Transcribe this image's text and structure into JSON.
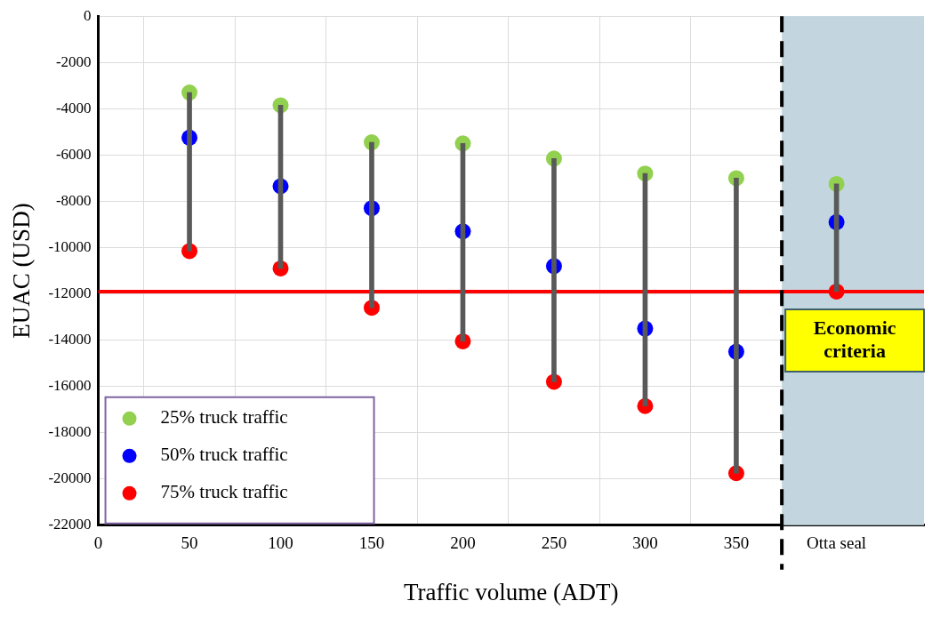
{
  "chart_data": {
    "type": "scatter",
    "xlabel": "Traffic volume (ADT)",
    "ylabel": "EUAC (USD)",
    "x": [
      50,
      100,
      150,
      200,
      250,
      300,
      350,
      405
    ],
    "series": [
      {
        "type": "bar",
        "color": "#595959",
        "base": [
          -10150,
          -10900,
          -12600,
          -14050,
          -15800,
          -16850,
          -19750,
          -11900
        ],
        "values": [
          6850,
          7050,
          7150,
          8550,
          9650,
          10050,
          12750,
          4650
        ]
      },
      {
        "name": "25% truck traffic",
        "color": "#92d050",
        "values": [
          -3300,
          -3850,
          -5450,
          -5500,
          -6150,
          -6800,
          -7000,
          -7250
        ]
      },
      {
        "name": "50% truck traffic",
        "color": "#0000ff",
        "values": [
          -5250,
          -7350,
          -8300,
          -9300,
          -10800,
          -13500,
          -14500,
          -8900
        ]
      },
      {
        "name": "75% truck traffic",
        "color": "#ff0000",
        "values": [
          -10150,
          -10900,
          -12600,
          -14050,
          -15800,
          -16850,
          -19750,
          -11900
        ]
      }
    ],
    "xlim": [
      0,
      453
    ],
    "xticks": [
      0,
      50,
      100,
      150,
      200,
      250,
      300,
      350,
      {
        "value": 405,
        "label": "Otta seal"
      }
    ],
    "ylim": [
      -22000,
      0
    ],
    "yticks": [
      -22000,
      -20000,
      -18000,
      -16000,
      -14000,
      -12000,
      -10000,
      -8000,
      -6000,
      -4000,
      -2000,
      0
    ],
    "ref_lines": [
      {
        "axis": "y",
        "value": -11900,
        "label": "Economic criteria",
        "color": "#ff0000"
      },
      {
        "axis": "x",
        "value": 375,
        "label": null,
        "color": "#000000",
        "line_style": "dashed"
      }
    ],
    "bands": [
      {
        "axis": "x",
        "from": 375,
        "to": 453,
        "label": null,
        "color": "#c3d6df"
      }
    ],
    "grid": true,
    "legend": "bottom left",
    "marker": "circle"
  }
}
